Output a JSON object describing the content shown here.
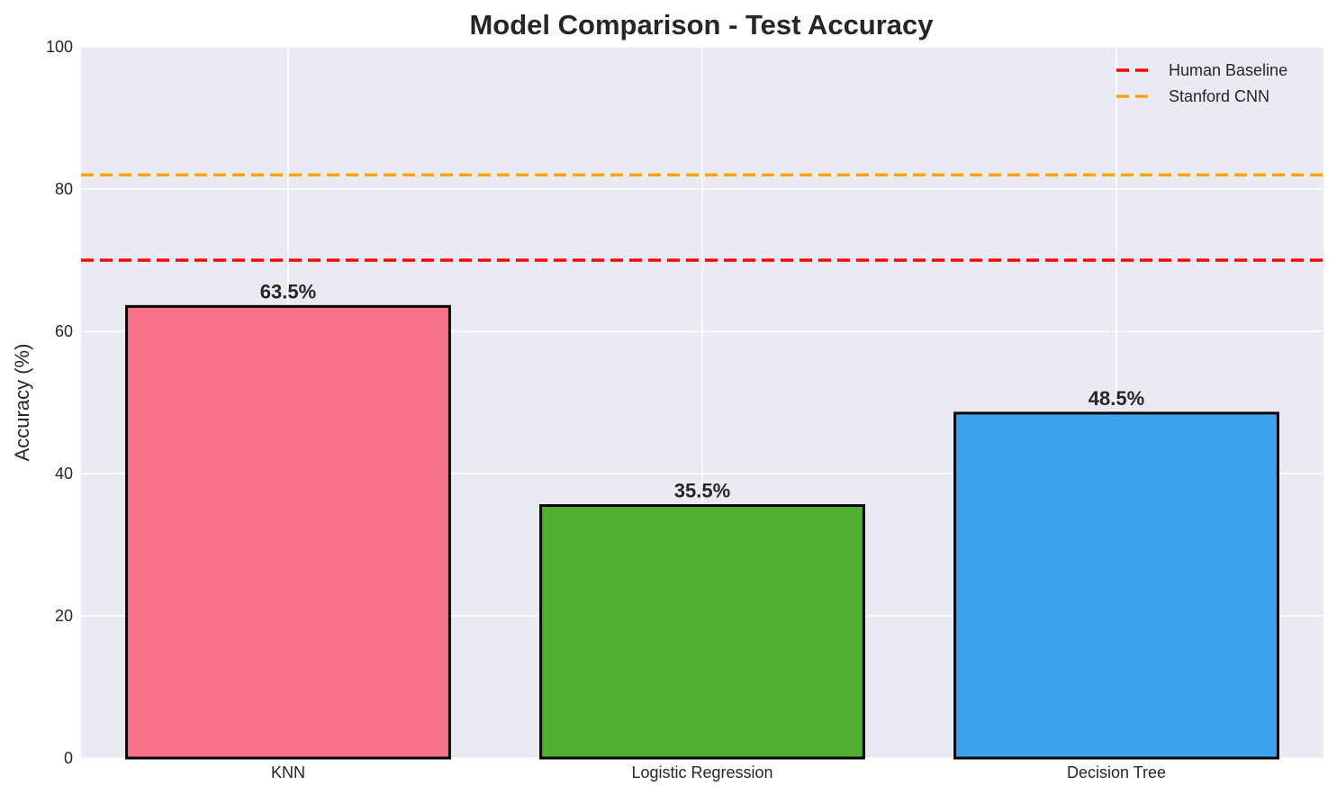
{
  "chart_data": {
    "type": "bar",
    "title": "Model Comparison - Test Accuracy",
    "xlabel": "",
    "ylabel": "Accuracy (%)",
    "ylim": [
      0,
      100
    ],
    "yticks": [
      0,
      20,
      40,
      60,
      80,
      100
    ],
    "categories": [
      "KNN",
      "Logistic Regression",
      "Decision Tree"
    ],
    "values": [
      63.5,
      35.5,
      48.5
    ],
    "value_labels": [
      "63.5%",
      "35.5%",
      "48.5%"
    ],
    "bar_colors": [
      "#f77189",
      "#50b131",
      "#3ba3ec"
    ],
    "grid": true,
    "legend_position": "top-right",
    "reference_lines": [
      {
        "name": "Human Baseline",
        "value": 70,
        "color": "#ff0000",
        "style": "dashed"
      },
      {
        "name": "Stanford CNN",
        "value": 82,
        "color": "#ffa500",
        "style": "dashed"
      }
    ]
  }
}
